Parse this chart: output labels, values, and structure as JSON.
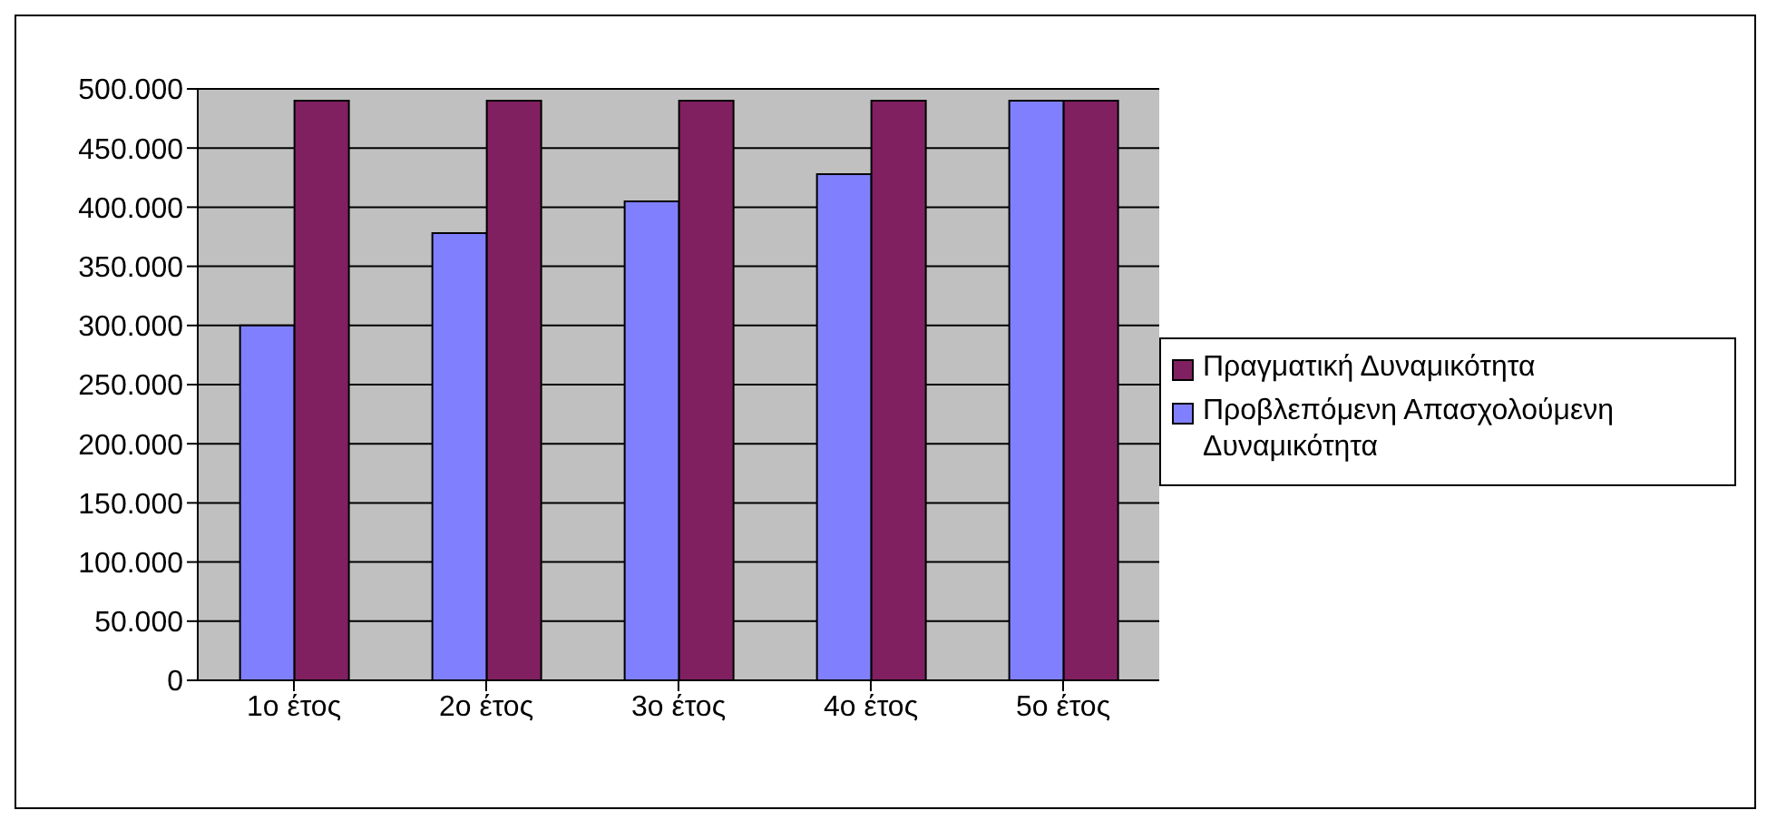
{
  "chart_data": {
    "type": "bar",
    "categories": [
      "1ο έτος",
      "2ο έτος",
      "3ο έτος",
      "4ο έτος",
      "5ο έτος"
    ],
    "series": [
      {
        "name": "Προβλεπόμενη Απασχολούμενη Δυναμικότητα",
        "color": "#8080ff",
        "values": [
          300000,
          378000,
          405000,
          428000,
          490000
        ]
      },
      {
        "name": "Πραγματική Δυναμικότητα",
        "color": "#802060",
        "values": [
          490000,
          490000,
          490000,
          490000,
          490000
        ]
      }
    ],
    "ylim": [
      0,
      500000
    ],
    "yticks": [
      {
        "value": 0,
        "label": "0"
      },
      {
        "value": 50000,
        "label": "50.000"
      },
      {
        "value": 100000,
        "label": "100.000"
      },
      {
        "value": 150000,
        "label": "150.000"
      },
      {
        "value": 200000,
        "label": "200.000"
      },
      {
        "value": 250000,
        "label": "250.000"
      },
      {
        "value": 300000,
        "label": "300.000"
      },
      {
        "value": 350000,
        "label": "350.000"
      },
      {
        "value": 400000,
        "label": "400.000"
      },
      {
        "value": 450000,
        "label": "450.000"
      },
      {
        "value": 500000,
        "label": "500.000"
      }
    ],
    "grid": "y",
    "legend": "right"
  }
}
